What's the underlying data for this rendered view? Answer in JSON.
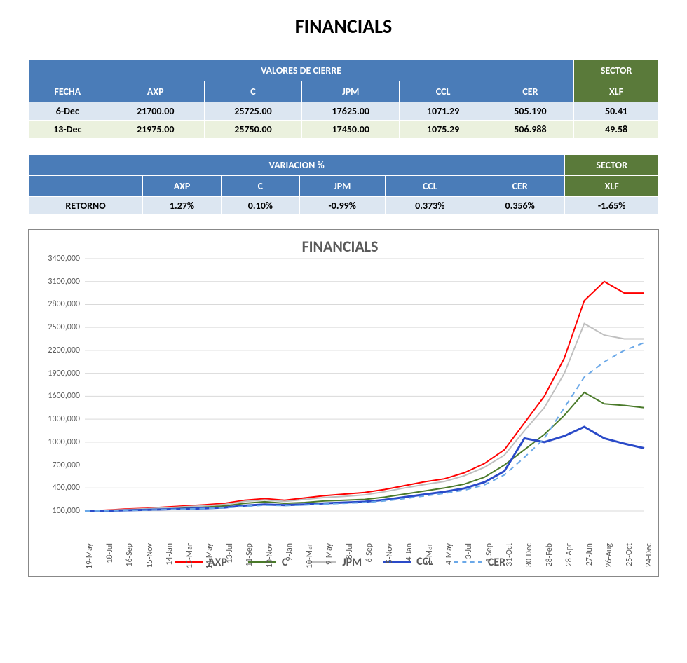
{
  "page_title": "FINANCIALS",
  "table1": {
    "header_main": "VALORES DE CIERRE",
    "header_sector": "SECTOR",
    "columns": [
      "FECHA",
      "AXP",
      "C",
      "JPM",
      "CCL",
      "CER"
    ],
    "sector_col": "XLF",
    "rows": [
      {
        "date": "6-Dec",
        "vals": [
          "21700.00",
          "25725.00",
          "17625.00",
          "1071.29",
          "505.190"
        ],
        "sector": "50.41"
      },
      {
        "date": "13-Dec",
        "vals": [
          "21975.00",
          "25750.00",
          "17450.00",
          "1075.29",
          "506.988"
        ],
        "sector": "49.58"
      }
    ]
  },
  "table2": {
    "header_main": "VARIACION %",
    "header_sector": "SECTOR",
    "columns": [
      "",
      "AXP",
      "C",
      "JPM",
      "CCL",
      "CER"
    ],
    "sector_col": "XLF",
    "rows": [
      {
        "date": "RETORNO",
        "vals": [
          "1.27%",
          "0.10%",
          "-0.99%",
          "0.373%",
          "0.356%"
        ],
        "sector": "-1.65%"
      }
    ]
  },
  "chart": {
    "title": "FINANCIALS",
    "type": "line",
    "ylim": [
      100000,
      3400000
    ],
    "ytick_step": 300000,
    "ylabels": [
      "100,000",
      "400,000",
      "700,000",
      "1000,000",
      "1300,000",
      "1600,000",
      "1900,000",
      "2200,000",
      "2500,000",
      "2800,000",
      "3100,000",
      "3400,000"
    ],
    "xlabels": [
      "19-May",
      "18-Jul",
      "16-Sep",
      "15-Nov",
      "14-Jan",
      "15-Mar",
      "14-May",
      "13-Jul",
      "11-Sep",
      "10-Nov",
      "9-Jan",
      "10-Mar",
      "9-May",
      "8-Jul",
      "6-Sep",
      "5-Nov",
      "4-Jan",
      "5-Mar",
      "4-May",
      "3-Jul",
      "1-Sep",
      "31-Oct",
      "30-Dec",
      "28-Feb",
      "28-Apr",
      "27-Jun",
      "26-Aug",
      "25-Oct",
      "24-Dec"
    ],
    "grid_color": "#d9d9d9",
    "bg_color": "#ffffff",
    "axis_text_color": "#595959",
    "series": [
      {
        "name": "AXP",
        "color": "#ff0000",
        "width": 2,
        "dash": "",
        "data": [
          100,
          110,
          125,
          135,
          150,
          165,
          180,
          200,
          240,
          260,
          240,
          270,
          300,
          320,
          340,
          380,
          430,
          480,
          520,
          600,
          720,
          900,
          1250,
          1600,
          2100,
          2850,
          3100,
          2950,
          2950
        ]
      },
      {
        "name": "C",
        "color": "#4a7a2a",
        "width": 2,
        "dash": "",
        "data": [
          100,
          105,
          110,
          120,
          130,
          140,
          150,
          165,
          200,
          220,
          200,
          210,
          230,
          240,
          250,
          280,
          320,
          360,
          400,
          450,
          540,
          700,
          900,
          1100,
          1350,
          1650,
          1500,
          1480,
          1450
        ]
      },
      {
        "name": "JPM",
        "color": "#bfbfbf",
        "width": 2,
        "dash": "",
        "data": [
          100,
          108,
          118,
          128,
          140,
          155,
          168,
          185,
          225,
          245,
          225,
          250,
          275,
          290,
          310,
          350,
          400,
          445,
          485,
          560,
          670,
          830,
          1150,
          1450,
          1900,
          2550,
          2400,
          2350,
          2350
        ]
      },
      {
        "name": "CCL",
        "color": "#2a4ac8",
        "width": 3,
        "dash": "",
        "data": [
          100,
          103,
          108,
          115,
          120,
          128,
          135,
          145,
          170,
          185,
          175,
          185,
          200,
          210,
          220,
          245,
          280,
          315,
          350,
          395,
          475,
          620,
          1050,
          1000,
          1080,
          1200,
          1050,
          980,
          920
        ]
      },
      {
        "name": "CER",
        "color": "#6aa8e8",
        "width": 2,
        "dash": "8,6",
        "data": [
          100,
          102,
          106,
          112,
          118,
          125,
          132,
          140,
          160,
          175,
          170,
          178,
          190,
          200,
          210,
          230,
          260,
          295,
          330,
          370,
          440,
          570,
          800,
          1050,
          1450,
          1850,
          2050,
          2200,
          2300
        ]
      }
    ]
  }
}
